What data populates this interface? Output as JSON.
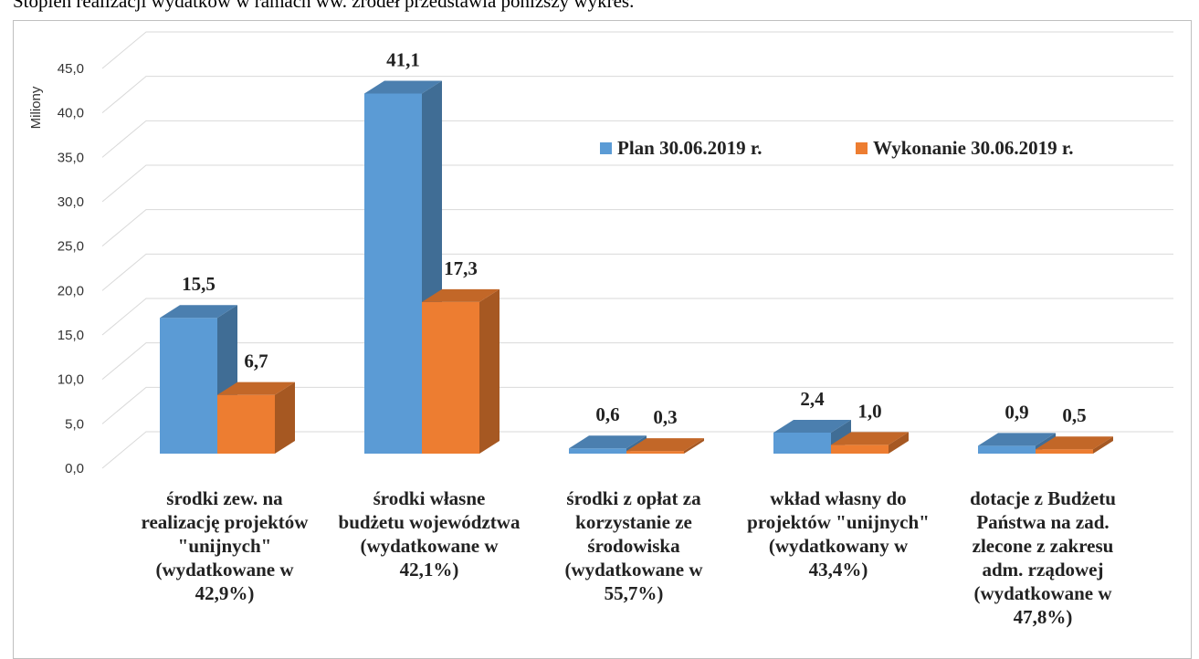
{
  "caption": "Stopień realizacji wydatków w ramach ww. źródeł przedstawia poniższy wykres.",
  "chart_data": {
    "type": "bar3d",
    "y_label": "Miliony",
    "categories": [
      "środki zew. na realizację projektów \"unijnych\" (wydatkowane w 42,9%)",
      "środki własne budżetu województwa (wydatkowane w 42,1%)",
      "środki z opłat za korzystanie ze środowiska (wydatkowane w 55,7%)",
      "wkład własny do projektów \"unijnych\" (wydatkowany w 43,4%)",
      "dotacje z Budżetu Państwa na zad. zlecone z zakresu adm. rządowej (wydatkowane w 47,8%)"
    ],
    "series": [
      {
        "name": "Plan 30.06.2019 r.",
        "color": "#5b9bd5",
        "values": [
          15.5,
          41.1,
          0.6,
          2.4,
          0.9
        ],
        "value_labels": [
          "15,5",
          "41,1",
          "0,6",
          "2,4",
          "0,9"
        ]
      },
      {
        "name": "Wykonanie 30.06.2019 r.",
        "color": "#ed7d31",
        "values": [
          6.7,
          17.3,
          0.3,
          1.0,
          0.5
        ],
        "value_labels": [
          "6,7",
          "17,3",
          "0,3",
          "1,0",
          "0,5"
        ]
      }
    ],
    "ylim": [
      0,
      45
    ],
    "yticks": [
      {
        "value": 0,
        "label": "0,0"
      },
      {
        "value": 5,
        "label": "5,0"
      },
      {
        "value": 10,
        "label": "10,0"
      },
      {
        "value": 15,
        "label": "15,0"
      },
      {
        "value": 20,
        "label": "20,0"
      },
      {
        "value": 25,
        "label": "25,0"
      },
      {
        "value": 30,
        "label": "30,0"
      },
      {
        "value": 35,
        "label": "35,0"
      },
      {
        "value": 40,
        "label": "40,0"
      },
      {
        "value": 45,
        "label": "45,0"
      }
    ],
    "grid": true
  }
}
